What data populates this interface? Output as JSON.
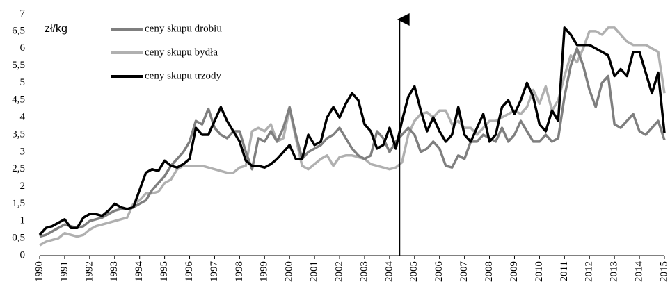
{
  "chart_data": {
    "type": "line",
    "annotation": "zł/kg",
    "event_x": 2004.4,
    "x": [
      1990,
      1990.25,
      1990.5,
      1990.75,
      1991,
      1991.25,
      1991.5,
      1991.75,
      1992,
      1992.25,
      1992.5,
      1992.75,
      1993,
      1993.25,
      1993.5,
      1993.75,
      1994,
      1994.25,
      1994.5,
      1994.75,
      1995,
      1995.25,
      1995.5,
      1995.75,
      1996,
      1996.25,
      1996.5,
      1996.75,
      1997,
      1997.25,
      1997.5,
      1997.75,
      1998,
      1998.25,
      1998.5,
      1998.75,
      1999,
      1999.25,
      1999.5,
      1999.75,
      2000,
      2000.25,
      2000.5,
      2000.75,
      2001,
      2001.25,
      2001.5,
      2001.75,
      2002,
      2002.25,
      2002.5,
      2002.75,
      2003,
      2003.25,
      2003.5,
      2003.75,
      2004,
      2004.25,
      2004.5,
      2004.75,
      2005,
      2005.25,
      2005.5,
      2005.75,
      2006,
      2006.25,
      2006.5,
      2006.75,
      2007,
      2007.25,
      2007.5,
      2007.75,
      2008,
      2008.25,
      2008.5,
      2008.75,
      2009,
      2009.25,
      2009.5,
      2009.75,
      2010,
      2010.25,
      2010.5,
      2010.75,
      2011,
      2011.25,
      2011.5,
      2011.75,
      2012,
      2012.25,
      2012.5,
      2012.75,
      2013,
      2013.25,
      2013.5,
      2013.75,
      2014,
      2014.25,
      2014.5,
      2014.75,
      2015
    ],
    "series": [
      {
        "name": "ceny skupu drobiu",
        "color": "#7f7f7f",
        "values": [
          0.55,
          0.6,
          0.7,
          0.8,
          0.9,
          0.85,
          0.8,
          0.85,
          1.0,
          1.05,
          1.1,
          1.2,
          1.3,
          1.35,
          1.35,
          1.4,
          1.5,
          1.6,
          1.9,
          2.1,
          2.3,
          2.6,
          2.8,
          3.0,
          3.3,
          3.9,
          3.8,
          4.25,
          3.7,
          3.5,
          3.4,
          3.6,
          3.6,
          3.0,
          2.5,
          3.4,
          3.3,
          3.6,
          3.3,
          3.7,
          4.3,
          3.5,
          2.8,
          3.0,
          3.1,
          3.2,
          3.4,
          3.5,
          3.7,
          3.4,
          3.1,
          2.9,
          2.8,
          2.9,
          3.6,
          3.4,
          3.0,
          3.3,
          3.5,
          3.7,
          3.5,
          3.0,
          3.1,
          3.3,
          3.1,
          2.6,
          2.55,
          2.9,
          2.8,
          3.3,
          3.3,
          3.5,
          3.4,
          3.3,
          3.7,
          3.3,
          3.5,
          3.9,
          3.6,
          3.3,
          3.3,
          3.5,
          3.3,
          3.4,
          4.6,
          5.5,
          6.0,
          5.5,
          4.8,
          4.3,
          5.0,
          5.2,
          3.8,
          3.7,
          3.9,
          4.1,
          3.6,
          3.5,
          3.7,
          3.9,
          3.35
        ]
      },
      {
        "name": "ceny skupu bydła",
        "color": "#b0b0b0",
        "values": [
          0.3,
          0.4,
          0.45,
          0.5,
          0.65,
          0.6,
          0.55,
          0.6,
          0.75,
          0.85,
          0.9,
          0.95,
          1.0,
          1.05,
          1.1,
          1.5,
          1.6,
          1.8,
          1.8,
          1.85,
          2.1,
          2.2,
          2.5,
          2.6,
          2.6,
          2.6,
          2.6,
          2.55,
          2.5,
          2.45,
          2.4,
          2.4,
          2.55,
          2.6,
          3.6,
          3.7,
          3.6,
          3.8,
          3.3,
          3.4,
          4.25,
          3.4,
          2.6,
          2.5,
          2.65,
          2.8,
          2.9,
          2.6,
          2.85,
          2.9,
          2.9,
          2.85,
          2.8,
          2.65,
          2.6,
          2.55,
          2.5,
          2.55,
          2.7,
          3.5,
          3.9,
          4.1,
          4.15,
          4.0,
          4.2,
          4.2,
          3.8,
          3.9,
          3.7,
          3.7,
          3.5,
          3.7,
          3.9,
          3.9,
          4.0,
          4.1,
          4.2,
          4.1,
          4.3,
          4.8,
          4.4,
          4.9,
          4.2,
          4.5,
          5.2,
          5.8,
          5.6,
          6.0,
          6.5,
          6.5,
          6.4,
          6.6,
          6.6,
          6.4,
          6.2,
          6.1,
          6.1,
          6.1,
          6.0,
          5.9,
          4.7
        ]
      },
      {
        "name": "ceny skupu trzody",
        "color": "#000000",
        "values": [
          0.6,
          0.8,
          0.85,
          0.95,
          1.05,
          0.8,
          0.8,
          1.1,
          1.2,
          1.2,
          1.15,
          1.3,
          1.5,
          1.4,
          1.35,
          1.4,
          1.9,
          2.4,
          2.5,
          2.45,
          2.75,
          2.6,
          2.55,
          2.65,
          2.8,
          3.7,
          3.5,
          3.5,
          3.9,
          4.3,
          3.9,
          3.6,
          3.3,
          2.75,
          2.6,
          2.6,
          2.55,
          2.65,
          2.8,
          3.0,
          3.2,
          2.8,
          2.8,
          3.5,
          3.2,
          3.3,
          4.0,
          4.3,
          4.0,
          4.4,
          4.7,
          4.5,
          3.8,
          3.6,
          3.1,
          3.2,
          3.7,
          3.1,
          3.9,
          4.6,
          4.9,
          4.2,
          3.6,
          4.0,
          3.6,
          3.3,
          3.5,
          4.3,
          3.5,
          3.3,
          3.7,
          4.1,
          3.3,
          3.5,
          4.3,
          4.5,
          4.1,
          4.5,
          5.0,
          4.6,
          3.8,
          3.6,
          4.2,
          3.9,
          6.6,
          6.4,
          6.1,
          6.1,
          6.1,
          6.0,
          5.9,
          5.8,
          5.2,
          5.4,
          5.2,
          5.9,
          5.9,
          5.3,
          4.7,
          5.3,
          3.55
        ]
      }
    ],
    "xlim": [
      1990,
      2015
    ],
    "xticks": [
      1990,
      1991,
      1992,
      1993,
      1994,
      1995,
      1996,
      1997,
      1998,
      1999,
      2000,
      2001,
      2002,
      2003,
      2004,
      2005,
      2006,
      2007,
      2008,
      2009,
      2010,
      2011,
      2012,
      2013,
      2014,
      2015
    ],
    "ylim": [
      0,
      7
    ],
    "yticks": [
      0,
      {
        "value": 0.5,
        "label": "0,5"
      },
      1,
      {
        "value": 1.5,
        "label": "1,5"
      },
      2,
      {
        "value": 2.5,
        "label": "2,5"
      },
      3,
      {
        "value": 3.5,
        "label": "3,5"
      },
      4,
      {
        "value": 4.5,
        "label": "4,5"
      },
      5,
      {
        "value": 5.5,
        "label": "5,5"
      },
      6,
      {
        "value": 6.5,
        "label": "6,5"
      },
      7
    ],
    "grid": false,
    "legend": "upper left"
  }
}
